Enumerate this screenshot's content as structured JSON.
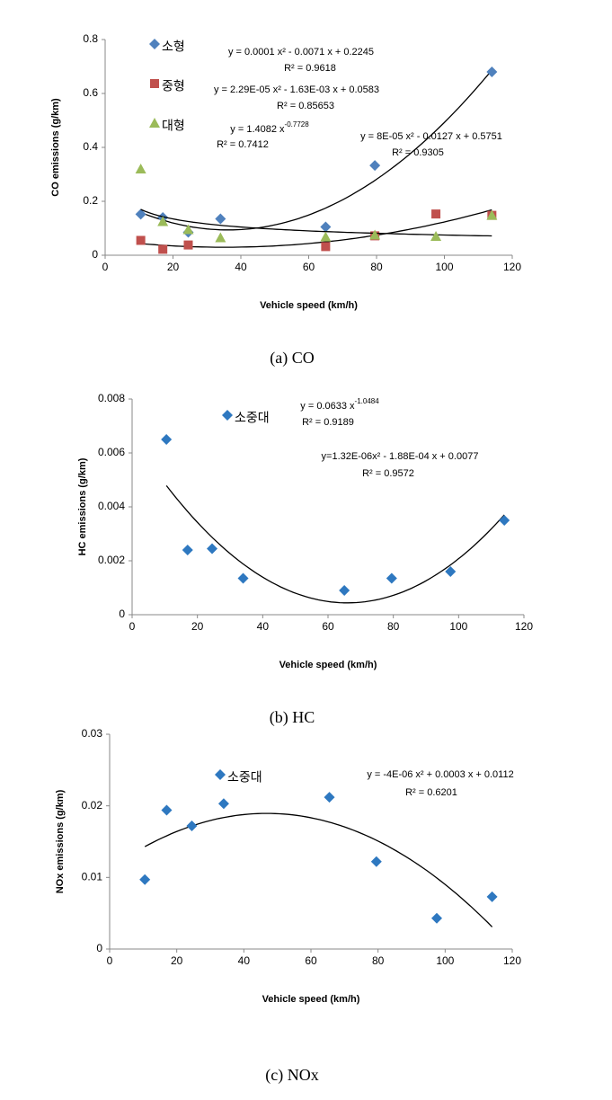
{
  "chart_data": [
    {
      "type": "scatter",
      "caption": "(a)  CO",
      "xlabel": "Vehicle speed (km/h)",
      "ylabel": "CO emissions (g/km)",
      "xlim": [
        0,
        120
      ],
      "xticks": [
        0,
        20,
        40,
        60,
        80,
        100,
        120
      ],
      "ylim": [
        0,
        0.8
      ],
      "yticks": [
        0,
        0.2,
        0.4,
        0.6,
        0.8
      ],
      "series": [
        {
          "name": "소형",
          "color": "#4f81bd",
          "marker": "diamond",
          "trendline": "poly2",
          "x": [
            10.5,
            17,
            24.5,
            34,
            65,
            79.5,
            114
          ],
          "values": [
            0.152,
            0.14,
            0.085,
            0.135,
            0.105,
            0.333,
            0.68
          ]
        },
        {
          "name": "중형",
          "color": "#c0504d",
          "marker": "square",
          "trendline": "poly2",
          "x": [
            10.5,
            17,
            24.5,
            65,
            79.5,
            97.5,
            114
          ],
          "values": [
            0.055,
            0.022,
            0.038,
            0.032,
            0.072,
            0.153,
            0.148
          ]
        },
        {
          "name": "대형",
          "color": "#9bbb59",
          "marker": "triangle",
          "trendline": "power",
          "x": [
            10.5,
            17,
            24.5,
            34,
            65,
            79.5,
            97.5,
            114
          ],
          "values": [
            0.32,
            0.125,
            0.095,
            0.065,
            0.068,
            0.075,
            0.07,
            0.148
          ]
        }
      ],
      "annotations": [
        {
          "text": "y = 0.0001 x² - 0.0071 x + 0.2245"
        },
        {
          "text": "R² = 0.9618"
        },
        {
          "text": "y = 2.29E-05 x² - 1.63E-03 x + 0.0583"
        },
        {
          "text": "R² = 0.85653"
        },
        {
          "text": "y = 1.4082 x",
          "sup": "-0.7728"
        },
        {
          "text": "R² = 0.7412"
        },
        {
          "text": "y = 8E-05 x² - 0.0127 x + 0.5751"
        },
        {
          "text": "R² = 0.9305"
        }
      ]
    },
    {
      "type": "scatter",
      "caption": "(b)  HC",
      "xlabel": "Vehicle speed (km/h)",
      "ylabel": "HC emissions (g/km)",
      "xlim": [
        0,
        120
      ],
      "xticks": [
        0,
        20,
        40,
        60,
        80,
        100,
        120
      ],
      "ylim": [
        0,
        0.008
      ],
      "yticks": [
        0,
        0.002,
        0.004,
        0.006,
        0.008
      ],
      "series": [
        {
          "name": "소중대",
          "color": "#2e78c0",
          "marker": "diamond",
          "trendline": "poly2",
          "x": [
            10.5,
            17,
            24.5,
            34,
            65,
            79.5,
            97.5,
            114
          ],
          "values": [
            0.0065,
            0.0024,
            0.00245,
            0.00135,
            0.0009,
            0.00135,
            0.0016,
            0.0035
          ]
        }
      ],
      "annotations": [
        {
          "text": "y = 0.0633 x",
          "sup": "-1.0484"
        },
        {
          "text": "R² = 0.9189"
        },
        {
          "text": "y=1.32E-06x² - 1.88E-04 x + 0.0077"
        },
        {
          "text": "R² = 0.9572"
        }
      ]
    },
    {
      "type": "scatter",
      "caption": "(c)  NOx",
      "xlabel": "Vehicle speed (km/h)",
      "ylabel": "NOx emissions (g/km)",
      "xlim": [
        0,
        120
      ],
      "xticks": [
        0,
        20,
        40,
        60,
        80,
        100,
        120
      ],
      "ylim": [
        0,
        0.03
      ],
      "yticks": [
        0,
        0.01,
        0.02,
        0.03
      ],
      "series": [
        {
          "name": "소중대",
          "color": "#2e78c0",
          "marker": "diamond",
          "trendline": "poly2",
          "x": [
            10.5,
            17,
            24.5,
            34,
            65.5,
            79.5,
            97.5,
            114
          ],
          "values": [
            0.0097,
            0.0194,
            0.0172,
            0.0203,
            0.0212,
            0.0122,
            0.0043,
            0.0073
          ]
        }
      ],
      "annotations": [
        {
          "text": "y = -4E-06 x² + 0.0003 x + 0.0112"
        },
        {
          "text": "R² = 0.6201"
        }
      ]
    }
  ]
}
